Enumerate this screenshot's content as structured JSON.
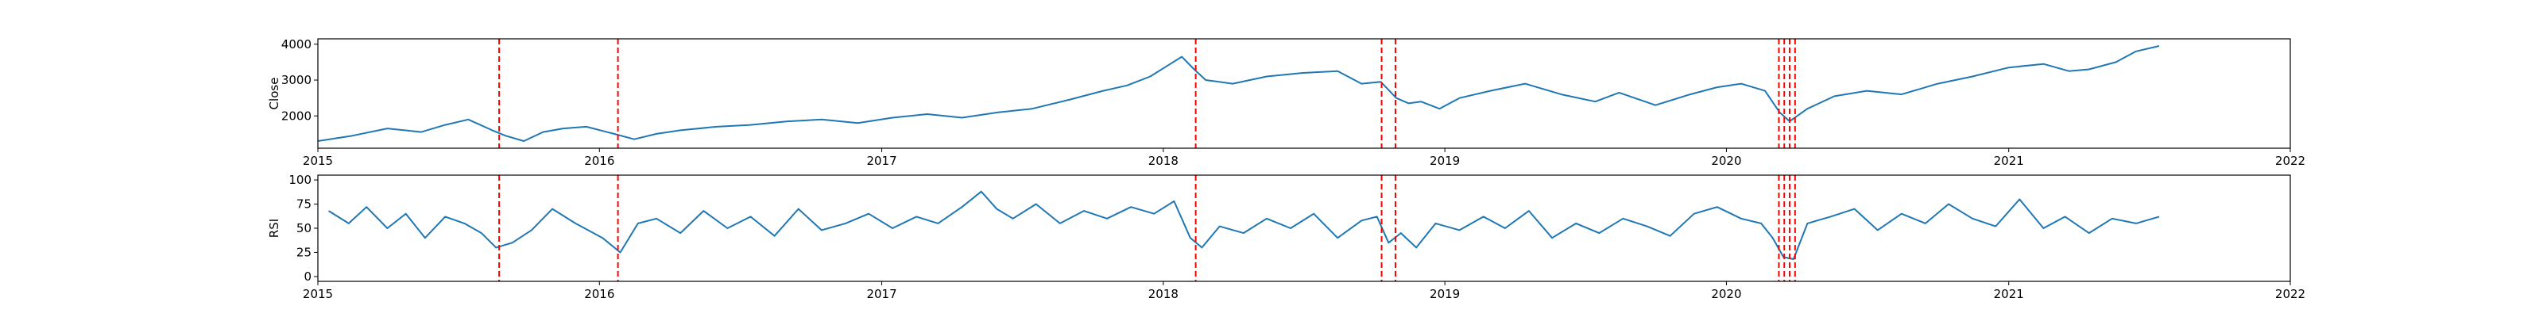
{
  "chart_data": [
    {
      "type": "line",
      "ylabel": "Close",
      "ylim": [
        1100,
        4150
      ],
      "yticks": [
        2000,
        3000,
        4000
      ],
      "xlim": [
        "2015-01-01",
        "2022-01-01"
      ],
      "xticks": [
        {
          "date": "2015-01-01",
          "label": "2015"
        },
        {
          "date": "2016-01-01",
          "label": "2016"
        },
        {
          "date": "2017-01-01",
          "label": "2017"
        },
        {
          "date": "2018-01-01",
          "label": "2018"
        },
        {
          "date": "2019-01-01",
          "label": "2019"
        },
        {
          "date": "2020-01-01",
          "label": "2020"
        },
        {
          "date": "2021-01-01",
          "label": "2021"
        },
        {
          "date": "2022-01-01",
          "label": "2022"
        }
      ],
      "series": [
        {
          "color": "#1f77b4",
          "x": [
            "2015-01-01",
            "2015-02-15",
            "2015-04-01",
            "2015-05-15",
            "2015-06-15",
            "2015-07-15",
            "2015-08-15",
            "2015-09-01",
            "2015-09-25",
            "2015-10-20",
            "2015-11-15",
            "2015-12-15",
            "2016-01-20",
            "2016-02-15",
            "2016-03-15",
            "2016-04-15",
            "2016-06-01",
            "2016-07-15",
            "2016-09-01",
            "2016-10-15",
            "2016-12-01",
            "2017-01-15",
            "2017-03-01",
            "2017-04-15",
            "2017-06-01",
            "2017-07-15",
            "2017-09-01",
            "2017-10-15",
            "2017-11-15",
            "2017-12-15",
            "2018-01-10",
            "2018-01-25",
            "2018-02-10",
            "2018-02-25",
            "2018-04-01",
            "2018-05-15",
            "2018-07-01",
            "2018-08-15",
            "2018-09-15",
            "2018-10-10",
            "2018-10-30",
            "2018-11-15",
            "2018-12-01",
            "2018-12-25",
            "2019-01-20",
            "2019-03-01",
            "2019-04-15",
            "2019-06-01",
            "2019-07-15",
            "2019-08-15",
            "2019-10-01",
            "2019-11-15",
            "2019-12-20",
            "2020-01-20",
            "2020-02-20",
            "2020-03-10",
            "2020-03-23",
            "2020-04-15",
            "2020-05-20",
            "2020-07-01",
            "2020-08-15",
            "2020-10-01",
            "2020-11-15",
            "2021-01-01",
            "2021-02-15",
            "2021-03-20",
            "2021-04-15",
            "2021-05-20",
            "2021-06-15",
            "2021-07-15"
          ],
          "y": [
            1300,
            1450,
            1650,
            1550,
            1750,
            1900,
            1600,
            1450,
            1300,
            1550,
            1650,
            1700,
            1500,
            1350,
            1500,
            1600,
            1700,
            1750,
            1850,
            1900,
            1800,
            1950,
            2050,
            1950,
            2100,
            2200,
            2450,
            2700,
            2850,
            3100,
            3450,
            3650,
            3300,
            3000,
            2900,
            3100,
            3200,
            3250,
            2900,
            2950,
            2500,
            2350,
            2400,
            2200,
            2500,
            2700,
            2900,
            2600,
            2400,
            2650,
            2300,
            2600,
            2800,
            2900,
            2700,
            2100,
            1850,
            2200,
            2550,
            2700,
            2600,
            2900,
            3100,
            3350,
            3450,
            3250,
            3300,
            3500,
            3800,
            3950
          ]
        }
      ],
      "vlines": {
        "color": "#ff0000",
        "style": "dashed",
        "dates": [
          "2015-08-24",
          "2016-01-25",
          "2018-02-12",
          "2018-10-11",
          "2018-10-29",
          "2020-03-09",
          "2020-03-16",
          "2020-03-23",
          "2020-03-30"
        ]
      }
    },
    {
      "type": "line",
      "ylabel": "RSI",
      "ylim": [
        -5,
        105
      ],
      "yticks": [
        0,
        25,
        50,
        75,
        100
      ],
      "xlim": [
        "2015-01-01",
        "2022-01-01"
      ],
      "xticks": [
        {
          "date": "2015-01-01",
          "label": "2015"
        },
        {
          "date": "2016-01-01",
          "label": "2016"
        },
        {
          "date": "2017-01-01",
          "label": "2017"
        },
        {
          "date": "2018-01-01",
          "label": "2018"
        },
        {
          "date": "2019-01-01",
          "label": "2019"
        },
        {
          "date": "2020-01-01",
          "label": "2020"
        },
        {
          "date": "2021-01-01",
          "label": "2021"
        },
        {
          "date": "2022-01-01",
          "label": "2022"
        }
      ],
      "series": [
        {
          "color": "#1f77b4",
          "x": [
            "2015-01-15",
            "2015-02-10",
            "2015-03-05",
            "2015-04-01",
            "2015-04-25",
            "2015-05-20",
            "2015-06-15",
            "2015-07-10",
            "2015-08-01",
            "2015-08-20",
            "2015-09-10",
            "2015-10-05",
            "2015-11-01",
            "2015-12-01",
            "2016-01-05",
            "2016-01-28",
            "2016-02-20",
            "2016-03-15",
            "2016-04-15",
            "2016-05-15",
            "2016-06-15",
            "2016-07-15",
            "2016-08-15",
            "2016-09-15",
            "2016-10-15",
            "2016-11-15",
            "2016-12-15",
            "2017-01-15",
            "2017-02-15",
            "2017-03-15",
            "2017-04-15",
            "2017-05-10",
            "2017-05-30",
            "2017-06-20",
            "2017-07-20",
            "2017-08-20",
            "2017-09-20",
            "2017-10-20",
            "2017-11-20",
            "2017-12-20",
            "2018-01-15",
            "2018-02-05",
            "2018-02-20",
            "2018-03-15",
            "2018-04-15",
            "2018-05-15",
            "2018-06-15",
            "2018-07-15",
            "2018-08-15",
            "2018-09-15",
            "2018-10-05",
            "2018-10-20",
            "2018-11-05",
            "2018-11-25",
            "2018-12-20",
            "2019-01-20",
            "2019-02-20",
            "2019-03-20",
            "2019-04-20",
            "2019-05-20",
            "2019-06-20",
            "2019-07-20",
            "2019-08-20",
            "2019-09-20",
            "2019-10-20",
            "2019-11-20",
            "2019-12-20",
            "2020-01-20",
            "2020-02-15",
            "2020-03-01",
            "2020-03-15",
            "2020-03-28",
            "2020-04-15",
            "2020-05-15",
            "2020-06-15",
            "2020-07-15",
            "2020-08-15",
            "2020-09-15",
            "2020-10-15",
            "2020-11-15",
            "2020-12-15",
            "2021-01-15",
            "2021-02-15",
            "2021-03-15",
            "2021-04-15",
            "2021-05-15",
            "2021-06-15",
            "2021-07-15"
          ],
          "y": [
            68,
            55,
            72,
            50,
            65,
            40,
            62,
            55,
            45,
            30,
            35,
            48,
            70,
            55,
            40,
            25,
            55,
            60,
            45,
            68,
            50,
            62,
            42,
            70,
            48,
            55,
            65,
            50,
            62,
            55,
            72,
            88,
            70,
            60,
            75,
            55,
            68,
            60,
            72,
            65,
            78,
            40,
            30,
            52,
            45,
            60,
            50,
            65,
            40,
            58,
            62,
            35,
            45,
            30,
            55,
            48,
            62,
            50,
            68,
            40,
            55,
            45,
            60,
            52,
            42,
            65,
            72,
            60,
            55,
            40,
            20,
            18,
            55,
            62,
            70,
            48,
            65,
            55,
            75,
            60,
            52,
            80,
            50,
            62,
            45,
            60,
            55,
            62
          ]
        }
      ],
      "vlines": {
        "color": "#ff0000",
        "style": "dashed",
        "dates": [
          "2015-08-24",
          "2016-01-25",
          "2018-02-12",
          "2018-10-11",
          "2018-10-29",
          "2020-03-09",
          "2020-03-16",
          "2020-03-23",
          "2020-03-30"
        ]
      }
    }
  ]
}
